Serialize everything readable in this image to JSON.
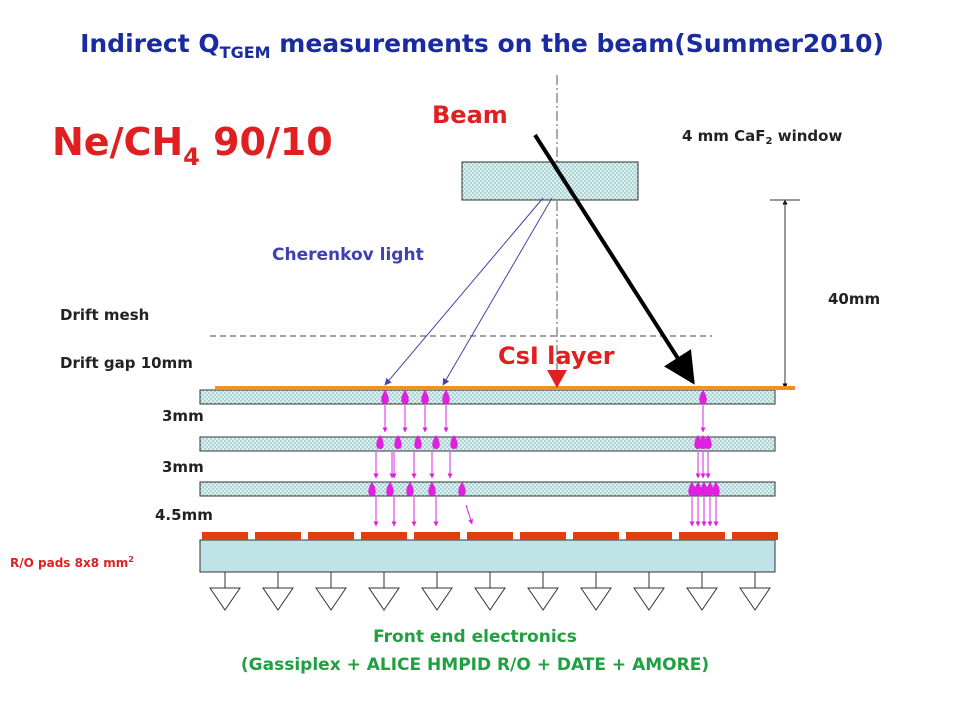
{
  "title": {
    "main": "Indirect Q",
    "sub": "TGEM",
    "rest": " measurements on the beam(Summer2010)"
  },
  "gas": {
    "main": "Ne/CH",
    "sub": "4",
    "rest": " 90/10"
  },
  "beam": "Beam",
  "window": {
    "main": "4 mm CaF",
    "sub": "2",
    "rest": " window"
  },
  "cherenkov": "Cherenkov light",
  "distance": "40mm",
  "drift_mesh": "Drift mesh",
  "drift_gap": "Drift gap 10mm",
  "csi": "CsI layer",
  "gaps": [
    "3mm",
    "3mm",
    "4.5mm"
  ],
  "pads": {
    "main": "R/O pads 8x8 mm",
    "sup": "2"
  },
  "electronics": [
    "Front end electronics",
    "(Gassiplex + ALICE HMPID R/O + DATE + AMORE)"
  ]
}
